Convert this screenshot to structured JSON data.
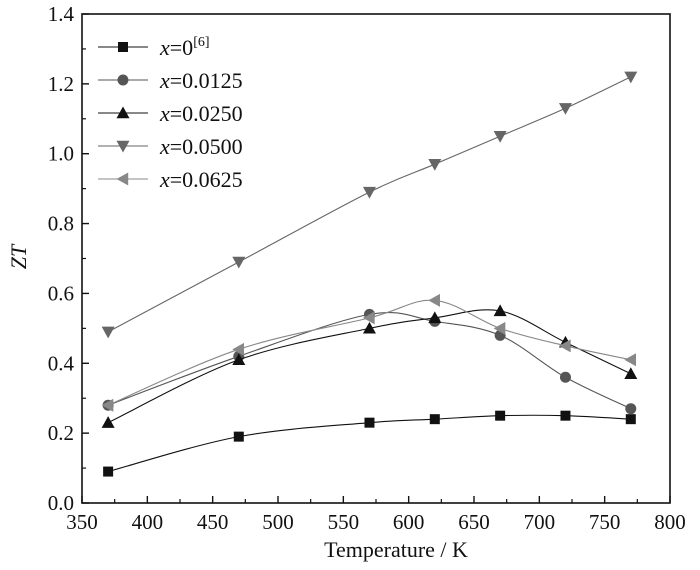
{
  "chart_data": {
    "type": "line",
    "xlabel": "Temperature / K",
    "ylabel": "ZT",
    "xlim": [
      350,
      800
    ],
    "ylim": [
      0.0,
      1.4
    ],
    "xticks": [
      "350",
      "400",
      "450",
      "500",
      "550",
      "600",
      "650",
      "700",
      "750",
      "800"
    ],
    "yticks": [
      "0.0",
      "0.2",
      "0.4",
      "0.6",
      "0.8",
      "1.0",
      "1.2",
      "1.4"
    ],
    "legend_position": "top-left",
    "grid": false,
    "series": [
      {
        "name_var": "x",
        "name_eq": "=0",
        "name_sup": "[6]",
        "marker": "square",
        "color": "#111111",
        "x": [
          370,
          470,
          570,
          620,
          670,
          720,
          770
        ],
        "y": [
          0.09,
          0.19,
          0.23,
          0.24,
          0.25,
          0.25,
          0.24
        ]
      },
      {
        "name_var": "x",
        "name_eq": "=0.0125",
        "name_sup": "",
        "marker": "circle",
        "color": "#555555",
        "x": [
          370,
          470,
          570,
          620,
          670,
          720,
          770
        ],
        "y": [
          0.28,
          0.42,
          0.54,
          0.52,
          0.48,
          0.36,
          0.27
        ]
      },
      {
        "name_var": "x",
        "name_eq": "=0.0250",
        "name_sup": "",
        "marker": "triangle-up",
        "color": "#111111",
        "x": [
          370,
          470,
          570,
          620,
          670,
          720,
          770
        ],
        "y": [
          0.23,
          0.41,
          0.5,
          0.53,
          0.55,
          0.46,
          0.37
        ]
      },
      {
        "name_var": "x",
        "name_eq": "=0.0500",
        "name_sup": "",
        "marker": "triangle-down",
        "color": "#666666",
        "x": [
          370,
          470,
          570,
          620,
          670,
          720,
          770
        ],
        "y": [
          0.49,
          0.69,
          0.89,
          0.97,
          1.05,
          1.13,
          1.22
        ]
      },
      {
        "name_var": "x",
        "name_eq": "=0.0625",
        "name_sup": "",
        "marker": "triangle-left",
        "color": "#888888",
        "x": [
          370,
          470,
          570,
          620,
          670,
          720,
          770
        ],
        "y": [
          0.28,
          0.44,
          0.53,
          0.58,
          0.5,
          0.45,
          0.41
        ]
      }
    ]
  }
}
